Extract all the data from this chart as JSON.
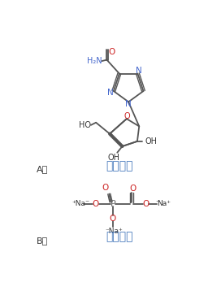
{
  "title_A": "利巴韦林",
  "title_B": "膦甲酸钠",
  "label_A": "A、",
  "label_B": "B、",
  "bg_color": "#ffffff",
  "line_color": "#555555",
  "atom_N_color": "#4466cc",
  "atom_O_color": "#cc2222",
  "atom_P_color": "#666666",
  "text_color_dark": "#333333",
  "text_color_blue": "#4477bb",
  "figsize": [
    2.56,
    3.58
  ],
  "dpi": 100
}
